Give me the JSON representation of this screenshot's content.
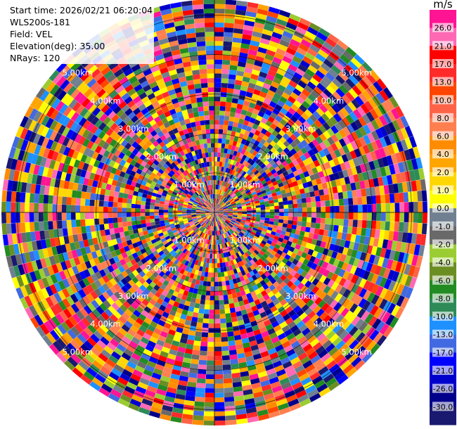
{
  "info": {
    "start_time": "Start time: 2026/02/21 06:20:04",
    "site": "WLS200s-181",
    "field": "Field: VEL",
    "elevation": "Elevation(deg): 35.00",
    "nrays": "NRays: 120"
  },
  "chart_data": {
    "type": "heatmap",
    "subtype": "polar-ppi",
    "field": "VEL",
    "units": "m/s",
    "n_rays": 120,
    "elevation_deg": 35.0,
    "range_rings_km": [
      1.0,
      2.0,
      3.0,
      4.0,
      5.0
    ],
    "ring_labels": [
      "1.00km",
      "2.00km",
      "3.00km",
      "4.00km",
      "5.00km"
    ],
    "max_range_km": 5.4,
    "colorbar": {
      "label": "m/s",
      "ticks": [
        "26.0",
        "21.0",
        "17.0",
        "13.0",
        "10.0",
        "8.0",
        "6.0",
        "4.0",
        "2.0",
        "1.0",
        "0.0",
        "-1.0",
        "-2.0",
        "-4.0",
        "-6.0",
        "-8.0",
        "-10.0",
        "-13.0",
        "-17.0",
        "-21.0",
        "-26.0",
        "-30.0"
      ],
      "colors": [
        "#ff1493",
        "#ff69b4",
        "#ff0000",
        "#ff2a2a",
        "#ff4500",
        "#ff6347",
        "#ff7f50",
        "#ff8c00",
        "#ffa500",
        "#ffd700",
        "#ffff00",
        "#708090",
        "#696969",
        "#9acd32",
        "#6b8e23",
        "#228b22",
        "#2e8b57",
        "#1e90ff",
        "#4169e1",
        "#0000ff",
        "#0000cd",
        "#00008b",
        "#191970"
      ]
    }
  }
}
